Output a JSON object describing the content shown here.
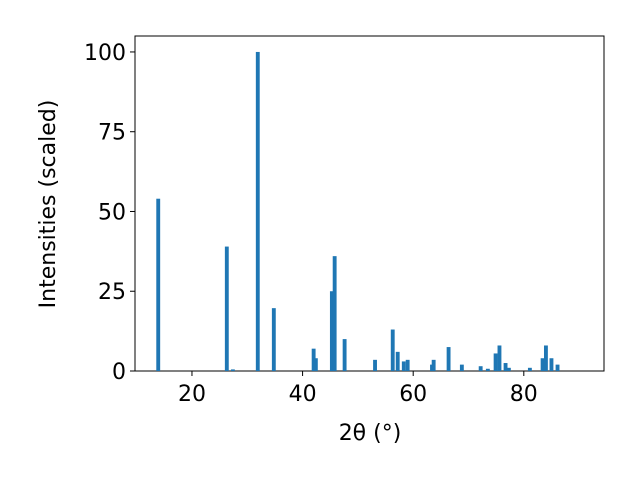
{
  "chart_data": {
    "type": "bar",
    "xlabel": "2θ (°)",
    "ylabel": "Intensities (scaled)",
    "x": [
      13.9,
      26.3,
      27.4,
      31.9,
      34.8,
      42.0,
      42.4,
      45.3,
      45.8,
      47.6,
      53.1,
      56.3,
      57.2,
      58.3,
      59.0,
      63.4,
      63.7,
      66.4,
      68.8,
      72.2,
      73.5,
      74.9,
      75.6,
      76.7,
      77.3,
      81.1,
      83.4,
      84.0,
      85.0,
      86.1
    ],
    "values": [
      54,
      39,
      0.5,
      100,
      19.7,
      7,
      4,
      25,
      36,
      10,
      3.5,
      13,
      6,
      3,
      3.5,
      2,
      3.5,
      7.5,
      2,
      1.5,
      0.7,
      5.5,
      8,
      2.5,
      1,
      1,
      4,
      8,
      4,
      2
    ],
    "color": "#1f77b4",
    "xlim": [
      9.7,
      94.5
    ],
    "ylim": [
      0,
      105
    ],
    "xticks": [
      20,
      40,
      60,
      80
    ],
    "yticks": [
      0,
      25,
      50,
      75,
      100
    ]
  }
}
